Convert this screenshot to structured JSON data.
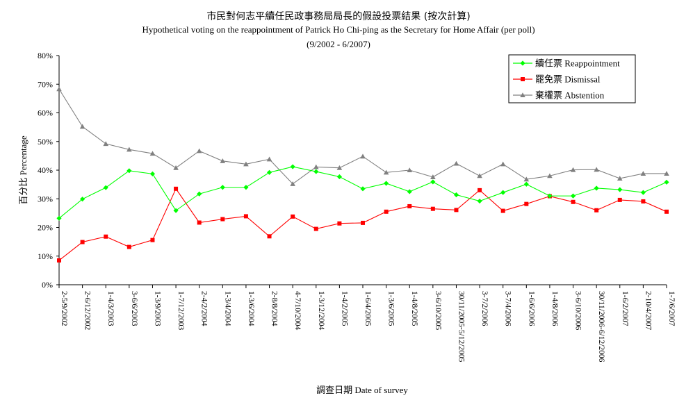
{
  "chart_data": {
    "type": "line",
    "title": "市民對何志平續任民政事務局局長的假設投票結果 (按次計算)",
    "subtitle": "Hypothetical voting on the reappointment of Patrick Ho Chi-ping as the Secretary for Home Affair (per poll)",
    "period": "(9/2002 - 6/2007)",
    "xlabel": "調查日期 Date of survey",
    "ylabel": "百分比 Percentage",
    "ylim": [
      0,
      80
    ],
    "yticks": [
      "0%",
      "10%",
      "20%",
      "30%",
      "40%",
      "50%",
      "60%",
      "70%",
      "80%"
    ],
    "legend_position": "top-right",
    "categories": [
      "2-5/9/2002",
      "2-6/12/2002",
      "1-4/3/2003",
      "3-6/6/2003",
      "1-3/9/2003",
      "1-7/12/2003",
      "2-4/2/2004",
      "1-3/4/2004",
      "1-3/6/2004",
      "2-8/8/2004",
      "4-7/10/2004",
      "1-3/12/2004",
      "1-4/2/2005",
      "1-6/4/2005",
      "1-3/6/2005",
      "1-4/8/2005",
      "3-6/10/2005",
      "30/11/2005-5/12/2005",
      "3-7/2/2006",
      "3-7/4/2006",
      "1-6/6/2006",
      "1-4/8/2006",
      "3-6/10/2006",
      "30/11/2006-6/12/2006",
      "1-6/2/2007",
      "2-10/4/2007",
      "1-7/6/2007"
    ],
    "series": [
      {
        "name": "續任票 Reappointment",
        "color": "#00ff00",
        "marker": "diamond",
        "values": [
          23.2,
          29.9,
          33.9,
          39.8,
          38.7,
          25.9,
          31.7,
          34.0,
          34.0,
          39.2,
          41.2,
          39.5,
          37.7,
          33.5,
          35.4,
          32.5,
          35.9,
          31.4,
          29.2,
          32.2,
          35.1,
          31.0,
          31.0,
          33.7,
          33.2,
          32.2,
          35.8
        ]
      },
      {
        "name": "罷免票 Dismissal",
        "color": "#ff0000",
        "marker": "square",
        "values": [
          8.5,
          14.9,
          16.8,
          13.2,
          15.6,
          33.5,
          21.7,
          22.9,
          23.9,
          16.9,
          23.8,
          19.5,
          21.4,
          21.6,
          25.5,
          27.4,
          26.5,
          26.1,
          33.0,
          25.8,
          28.2,
          30.9,
          28.9,
          26.0,
          29.6,
          29.1,
          25.5
        ]
      },
      {
        "name": "棄權票 Abstention",
        "color": "#808080",
        "marker": "triangle",
        "values": [
          68.3,
          55.2,
          49.2,
          47.2,
          45.8,
          40.8,
          46.7,
          43.2,
          42.1,
          43.8,
          35.2,
          41.1,
          40.8,
          44.8,
          39.2,
          40.0,
          37.6,
          42.3,
          38.0,
          42.1,
          36.8,
          38.0,
          40.1,
          40.2,
          37.1,
          38.8,
          38.8
        ]
      }
    ]
  }
}
